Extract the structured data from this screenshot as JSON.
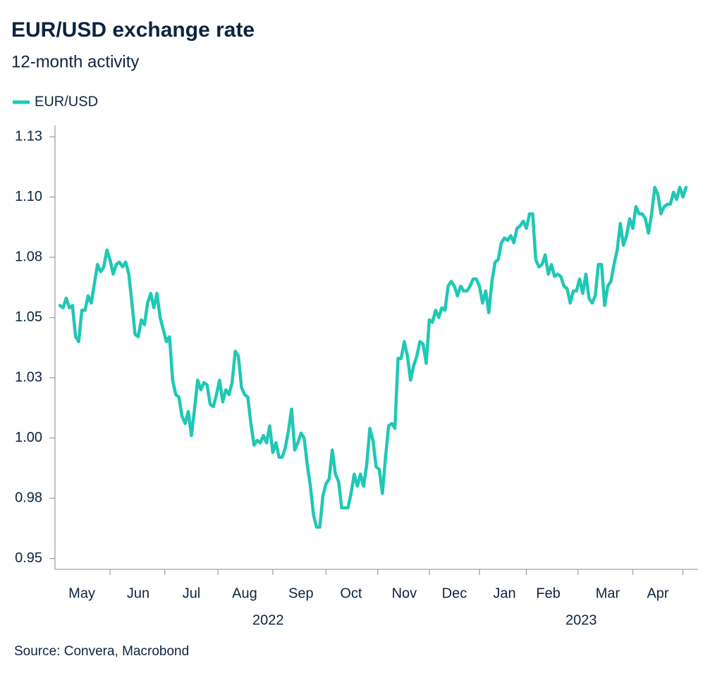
{
  "chart_data": {
    "type": "line",
    "title": "EUR/USD exchange rate",
    "subtitle": "12-month activity",
    "source": "Source: Convera, Macrobond",
    "year_labels": [
      "2022",
      "2023"
    ],
    "categories": [
      null,
      null,
      null,
      null,
      null,
      null,
      null,
      "May",
      null,
      null,
      null,
      null,
      null,
      null,
      null,
      null,
      null,
      null,
      null,
      null,
      null,
      null,
      null,
      null,
      null,
      "Jun",
      null,
      null,
      null,
      null,
      null,
      null,
      null,
      null,
      null,
      null,
      null,
      null,
      null,
      null,
      null,
      null,
      "Jul",
      null,
      null,
      null,
      null,
      null,
      null,
      null,
      null,
      null,
      null,
      null,
      null,
      null,
      null,
      null,
      null,
      "Aug",
      null,
      null,
      null,
      null,
      null,
      null,
      null,
      null,
      null,
      null,
      null,
      null,
      null,
      null,
      null,
      null,
      null,
      "Sep",
      null,
      null,
      null,
      null,
      null,
      null,
      null,
      null,
      null,
      null,
      null,
      null,
      null,
      null,
      null,
      "Oct",
      null,
      null,
      null,
      null,
      null,
      null,
      null,
      null,
      null,
      null,
      null,
      null,
      null,
      null,
      null,
      null,
      "Nov",
      null,
      null,
      null,
      null,
      null,
      null,
      null,
      null,
      null,
      null,
      null,
      null,
      null,
      null,
      null,
      "Dec",
      null,
      null,
      null,
      null,
      null,
      null,
      null,
      null,
      null,
      null,
      null,
      null,
      null,
      null,
      null,
      "Jan",
      null,
      null,
      null,
      null,
      null,
      null,
      null,
      null,
      null,
      null,
      null,
      null,
      null,
      "Feb",
      null,
      null,
      null,
      null,
      null,
      null,
      null,
      null,
      null,
      null,
      null,
      null,
      null,
      null,
      null,
      null,
      null,
      null,
      "Mar",
      null,
      null,
      null,
      null,
      null,
      null,
      null,
      null,
      null,
      null,
      null,
      null,
      null,
      null,
      null,
      "Apr",
      null,
      null,
      null,
      null,
      null,
      null,
      null,
      null,
      null
    ],
    "series": [
      {
        "name": "EUR/USD",
        "color": "#1fc8b4",
        "values": [
          1.055,
          1.054,
          1.058,
          1.054,
          1.055,
          1.042,
          1.04,
          1.053,
          1.053,
          1.059,
          1.056,
          1.064,
          1.072,
          1.069,
          1.071,
          1.078,
          1.074,
          1.068,
          1.072,
          1.073,
          1.071,
          1.073,
          1.068,
          1.056,
          1.043,
          1.042,
          1.049,
          1.047,
          1.056,
          1.06,
          1.054,
          1.06,
          1.05,
          1.045,
          1.04,
          1.042,
          1.024,
          1.018,
          1.017,
          1.009,
          1.006,
          1.011,
          1.001,
          1.012,
          1.024,
          1.02,
          1.023,
          1.022,
          1.014,
          1.013,
          1.018,
          1.024,
          1.015,
          1.02,
          1.018,
          1.023,
          1.036,
          1.034,
          1.021,
          1.018,
          1.017,
          1.006,
          0.997,
          0.999,
          0.998,
          1.001,
          0.998,
          1.005,
          0.994,
          0.998,
          0.992,
          0.992,
          0.996,
          1.003,
          1.012,
          0.995,
          0.998,
          1.002,
          1.0,
          0.989,
          0.98,
          0.968,
          0.963,
          0.963,
          0.976,
          0.981,
          0.983,
          0.995,
          0.985,
          0.982,
          0.971,
          0.971,
          0.971,
          0.977,
          0.985,
          0.98,
          0.985,
          0.98,
          0.989,
          1.004,
          0.999,
          0.988,
          0.987,
          0.977,
          0.992,
          1.005,
          1.006,
          1.004,
          1.033,
          1.033,
          1.04,
          1.034,
          1.024,
          1.03,
          1.034,
          1.04,
          1.039,
          1.031,
          1.049,
          1.048,
          1.053,
          1.05,
          1.054,
          1.053,
          1.063,
          1.065,
          1.063,
          1.059,
          1.063,
          1.061,
          1.061,
          1.063,
          1.066,
          1.066,
          1.063,
          1.056,
          1.061,
          1.052,
          1.065,
          1.073,
          1.074,
          1.081,
          1.083,
          1.082,
          1.084,
          1.081,
          1.087,
          1.088,
          1.09,
          1.087,
          1.093,
          1.093,
          1.074,
          1.071,
          1.072,
          1.076,
          1.068,
          1.072,
          1.067,
          1.068,
          1.067,
          1.063,
          1.062,
          1.056,
          1.061,
          1.061,
          1.066,
          1.06,
          1.068,
          1.058,
          1.056,
          1.059,
          1.072,
          1.072,
          1.055,
          1.063,
          1.065,
          1.072,
          1.078,
          1.089,
          1.08,
          1.084,
          1.091,
          1.087,
          1.096,
          1.093,
          1.093,
          1.091,
          1.085,
          1.093,
          1.104,
          1.101,
          1.093,
          1.096,
          1.097,
          1.097,
          1.102,
          1.099,
          1.104,
          1.1,
          1.104
        ]
      }
    ],
    "ylim": [
      0.9455,
      1.13
    ],
    "yticks": [
      {
        "value": 1.125,
        "label": "1.13"
      },
      {
        "value": 1.1,
        "label": "1.10"
      },
      {
        "value": 1.075,
        "label": "1.08"
      },
      1.05,
      {
        "value": 1.025,
        "label": "1.03"
      },
      {
        "value": 1,
        "label": "1.00"
      },
      {
        "value": 0.975,
        "label": "0.98"
      },
      0.95
    ],
    "grid": false
  }
}
